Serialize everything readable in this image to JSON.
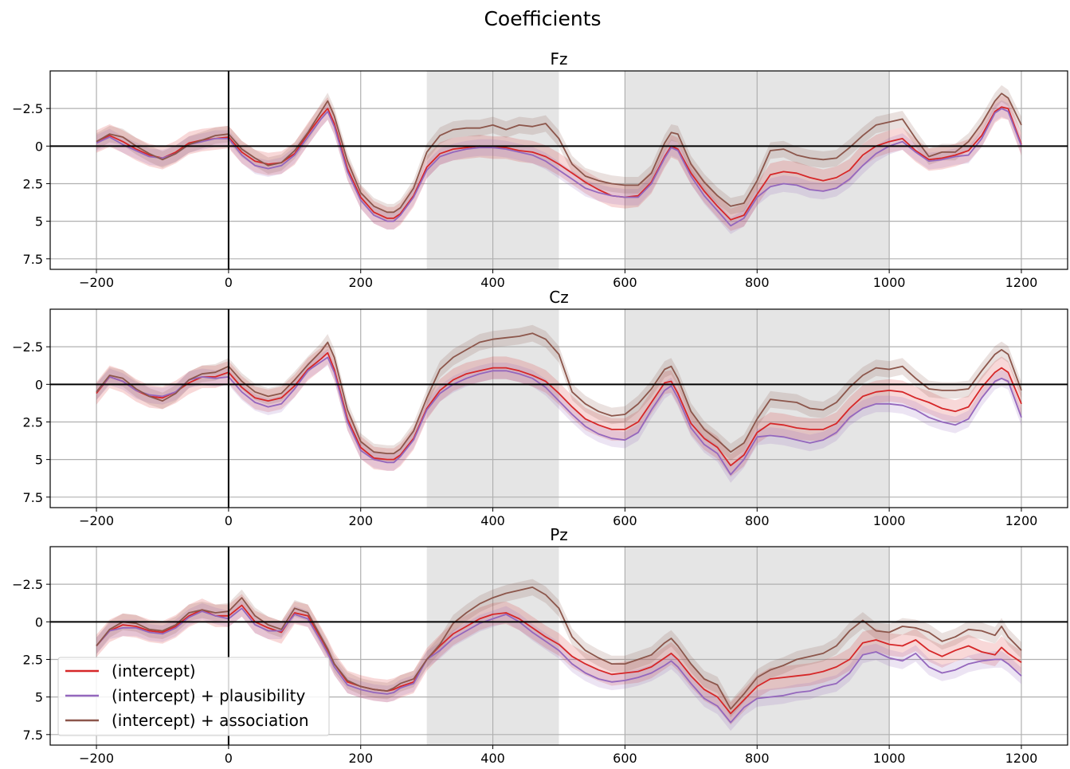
{
  "figure": {
    "title": "Coefficients"
  },
  "colors": {
    "intercept": "#d62728",
    "plausibility": "#9467bd",
    "association": "#8c564b",
    "shade": "#e5e5e5",
    "grid": "#b0b0b0"
  },
  "legend": {
    "location": "lower-left of bottom panel",
    "entries": [
      "(intercept)",
      "(intercept) + plausibility",
      "(intercept) + association"
    ]
  },
  "chart_data": [
    {
      "type": "line",
      "title": "Fz",
      "xlim": [
        -270,
        1270
      ],
      "ylim": [
        8.2,
        -5.0
      ],
      "y_inverted": true,
      "xticks": [
        -200,
        0,
        200,
        400,
        600,
        800,
        1000,
        1200
      ],
      "yticks": [
        -2.5,
        0.0,
        2.5,
        5.0,
        7.5
      ],
      "grid": true,
      "reference_lines": {
        "x": 0,
        "y": 0
      },
      "shaded_x_ranges": [
        [
          300,
          500
        ],
        [
          600,
          1000
        ]
      ],
      "x": [
        -200,
        -180,
        -160,
        -140,
        -120,
        -100,
        -80,
        -60,
        -40,
        -20,
        0,
        20,
        40,
        60,
        80,
        100,
        120,
        140,
        150,
        160,
        180,
        200,
        220,
        240,
        250,
        260,
        280,
        300,
        320,
        340,
        360,
        380,
        400,
        420,
        440,
        460,
        480,
        500,
        520,
        540,
        560,
        580,
        600,
        620,
        640,
        660,
        670,
        680,
        700,
        720,
        740,
        760,
        780,
        800,
        820,
        840,
        860,
        880,
        900,
        920,
        940,
        960,
        980,
        1000,
        1020,
        1040,
        1060,
        1080,
        1100,
        1120,
        1140,
        1160,
        1170,
        1180,
        1200
      ],
      "series": [
        {
          "name": "(intercept)",
          "values": [
            -0.3,
            -0.7,
            -0.3,
            0.2,
            0.6,
            0.8,
            0.4,
            -0.2,
            -0.4,
            -0.5,
            -0.6,
            0.4,
            1.0,
            1.2,
            1.1,
            0.5,
            -0.8,
            -2.0,
            -2.5,
            -1.5,
            1.5,
            3.4,
            4.4,
            4.8,
            4.8,
            4.5,
            3.3,
            1.4,
            0.5,
            0.2,
            0.1,
            0.0,
            0.1,
            0.1,
            0.3,
            0.4,
            0.7,
            1.2,
            1.8,
            2.4,
            2.9,
            3.3,
            3.4,
            3.3,
            2.4,
            0.7,
            0.0,
            0.2,
            1.8,
            3.0,
            4.0,
            4.9,
            4.6,
            3.2,
            1.9,
            1.7,
            1.8,
            2.1,
            2.3,
            2.1,
            1.6,
            0.6,
            0.0,
            -0.3,
            -0.5,
            0.3,
            0.9,
            0.8,
            0.6,
            0.3,
            -0.7,
            -2.3,
            -2.6,
            -2.5,
            -0.1
          ]
        },
        {
          "name": "(intercept) + plausibility",
          "values": [
            -0.2,
            -0.6,
            -0.1,
            0.3,
            0.7,
            0.8,
            0.5,
            -0.1,
            -0.3,
            -0.5,
            -0.5,
            0.6,
            1.3,
            1.5,
            1.3,
            0.6,
            -0.6,
            -1.8,
            -2.3,
            -1.3,
            1.7,
            3.6,
            4.6,
            5.0,
            5.0,
            4.6,
            3.4,
            1.6,
            0.7,
            0.4,
            0.2,
            0.1,
            0.1,
            0.2,
            0.4,
            0.6,
            1.0,
            1.6,
            2.2,
            2.8,
            3.1,
            3.3,
            3.4,
            3.4,
            2.5,
            0.8,
            0.1,
            0.3,
            2.0,
            3.3,
            4.3,
            5.3,
            4.8,
            3.4,
            2.7,
            2.5,
            2.6,
            2.9,
            3.0,
            2.8,
            2.2,
            1.3,
            0.5,
            0.0,
            -0.3,
            0.4,
            1.0,
            0.9,
            0.7,
            0.6,
            -0.5,
            -2.2,
            -2.5,
            -2.3,
            0.0
          ]
        },
        {
          "name": "(intercept) + association",
          "values": [
            -0.3,
            -0.8,
            -0.6,
            0.0,
            0.5,
            0.9,
            0.5,
            -0.1,
            -0.4,
            -0.7,
            -0.8,
            0.2,
            0.8,
            1.3,
            1.1,
            0.3,
            -0.9,
            -2.3,
            -3.0,
            -2.0,
            1.0,
            3.1,
            4.0,
            4.4,
            4.4,
            4.1,
            2.8,
            0.4,
            -0.7,
            -1.1,
            -1.2,
            -1.2,
            -1.4,
            -1.1,
            -1.4,
            -1.3,
            -1.5,
            -0.5,
            1.2,
            2.0,
            2.3,
            2.5,
            2.6,
            2.6,
            1.8,
            -0.2,
            -0.9,
            -0.8,
            1.2,
            2.4,
            3.3,
            4.0,
            3.8,
            2.3,
            0.3,
            0.2,
            0.6,
            0.8,
            0.9,
            0.8,
            0.1,
            -0.7,
            -1.4,
            -1.6,
            -1.8,
            -0.5,
            0.7,
            0.4,
            0.4,
            -0.3,
            -1.5,
            -3.0,
            -3.5,
            -3.2,
            -1.4
          ]
        }
      ]
    },
    {
      "type": "line",
      "title": "Cz",
      "xlim": [
        -270,
        1270
      ],
      "ylim": [
        8.2,
        -5.0
      ],
      "y_inverted": true,
      "xticks": [
        -200,
        0,
        200,
        400,
        600,
        800,
        1000,
        1200
      ],
      "yticks": [
        -2.5,
        0.0,
        2.5,
        5.0,
        7.5
      ],
      "grid": true,
      "reference_lines": {
        "x": 0,
        "y": 0
      },
      "shaded_x_ranges": [
        [
          300,
          500
        ],
        [
          600,
          1000
        ]
      ],
      "x": [
        -200,
        -180,
        -160,
        -140,
        -120,
        -100,
        -80,
        -60,
        -40,
        -20,
        0,
        20,
        40,
        60,
        80,
        100,
        120,
        140,
        150,
        160,
        180,
        200,
        220,
        240,
        250,
        260,
        280,
        300,
        320,
        340,
        360,
        380,
        400,
        420,
        440,
        460,
        480,
        500,
        520,
        540,
        560,
        580,
        600,
        620,
        640,
        660,
        670,
        680,
        700,
        720,
        740,
        760,
        780,
        800,
        820,
        840,
        860,
        880,
        900,
        920,
        940,
        960,
        980,
        1000,
        1020,
        1040,
        1060,
        1080,
        1100,
        1120,
        1140,
        1160,
        1170,
        1180,
        1200
      ],
      "series": [
        {
          "name": "(intercept)",
          "values": [
            0.6,
            -0.5,
            -0.2,
            0.4,
            0.8,
            0.9,
            0.5,
            -0.1,
            -0.5,
            -0.5,
            -0.8,
            0.2,
            0.9,
            1.1,
            0.9,
            0.1,
            -1.0,
            -1.7,
            -2.1,
            -1.0,
            2.3,
            4.2,
            4.9,
            5.0,
            5.0,
            4.7,
            3.6,
            1.6,
            0.4,
            -0.3,
            -0.7,
            -0.9,
            -1.1,
            -1.1,
            -0.9,
            -0.6,
            -0.2,
            0.6,
            1.5,
            2.3,
            2.7,
            3.0,
            3.0,
            2.5,
            1.2,
            -0.1,
            -0.2,
            0.6,
            2.6,
            3.6,
            4.2,
            5.4,
            4.7,
            3.2,
            2.6,
            2.7,
            2.9,
            3.0,
            3.0,
            2.6,
            1.6,
            0.8,
            0.5,
            0.4,
            0.5,
            0.9,
            1.2,
            1.6,
            1.8,
            1.5,
            0.2,
            -0.8,
            -1.1,
            -0.8,
            1.3
          ]
        },
        {
          "name": "(intercept) + plausibility",
          "values": [
            0.5,
            -0.5,
            -0.2,
            0.4,
            0.7,
            0.8,
            0.5,
            -0.3,
            -0.5,
            -0.4,
            -0.5,
            0.5,
            1.2,
            1.5,
            1.3,
            0.3,
            -0.9,
            -1.5,
            -1.8,
            -0.8,
            2.5,
            4.4,
            5.0,
            5.2,
            5.2,
            4.8,
            3.7,
            1.7,
            0.6,
            0.0,
            -0.4,
            -0.7,
            -0.9,
            -0.9,
            -0.7,
            -0.4,
            0.2,
            1.1,
            2.0,
            2.8,
            3.3,
            3.6,
            3.7,
            3.2,
            1.7,
            0.4,
            0.1,
            0.9,
            2.9,
            4.0,
            4.6,
            6.0,
            5.0,
            3.5,
            3.4,
            3.5,
            3.7,
            3.9,
            3.7,
            3.2,
            2.2,
            1.6,
            1.3,
            1.3,
            1.4,
            1.7,
            2.2,
            2.5,
            2.7,
            2.3,
            0.9,
            -0.2,
            -0.4,
            -0.2,
            2.2
          ]
        },
        {
          "name": "(intercept) + association",
          "values": [
            0.5,
            -0.6,
            -0.4,
            0.3,
            0.8,
            1.1,
            0.6,
            -0.3,
            -0.7,
            -0.8,
            -1.2,
            -0.2,
            0.5,
            0.8,
            0.6,
            -0.3,
            -1.3,
            -2.2,
            -2.8,
            -1.8,
            1.7,
            3.8,
            4.5,
            4.6,
            4.6,
            4.3,
            3.1,
            0.9,
            -1.0,
            -1.8,
            -2.3,
            -2.8,
            -3.0,
            -3.1,
            -3.2,
            -3.4,
            -3.0,
            -2.0,
            0.5,
            1.3,
            1.8,
            2.1,
            2.0,
            1.3,
            0.3,
            -1.0,
            -1.2,
            -0.4,
            1.8,
            3.0,
            3.7,
            4.5,
            3.9,
            2.3,
            1.0,
            1.1,
            1.2,
            1.6,
            1.7,
            1.2,
            0.2,
            -0.6,
            -1.1,
            -1.0,
            -1.2,
            -0.4,
            0.3,
            0.4,
            0.4,
            0.3,
            -0.9,
            -2.0,
            -2.3,
            -2.0,
            0.4
          ]
        }
      ]
    },
    {
      "type": "line",
      "title": "Pz",
      "xlim": [
        -270,
        1270
      ],
      "ylim": [
        8.2,
        -5.0
      ],
      "y_inverted": true,
      "xticks": [
        -200,
        0,
        200,
        400,
        600,
        800,
        1000,
        1200
      ],
      "yticks": [
        -2.5,
        0.0,
        2.5,
        5.0,
        7.5
      ],
      "grid": true,
      "reference_lines": {
        "x": 0,
        "y": 0
      },
      "shaded_x_ranges": [
        [
          300,
          500
        ],
        [
          600,
          1000
        ]
      ],
      "x": [
        -200,
        -180,
        -160,
        -140,
        -120,
        -100,
        -80,
        -60,
        -40,
        -20,
        0,
        20,
        40,
        60,
        80,
        100,
        120,
        140,
        150,
        160,
        180,
        200,
        220,
        240,
        250,
        260,
        280,
        300,
        320,
        340,
        360,
        380,
        400,
        420,
        440,
        460,
        480,
        500,
        520,
        540,
        560,
        580,
        600,
        620,
        640,
        660,
        670,
        680,
        700,
        720,
        740,
        760,
        780,
        800,
        820,
        840,
        860,
        880,
        900,
        920,
        940,
        960,
        980,
        1000,
        1020,
        1040,
        1060,
        1080,
        1100,
        1120,
        1140,
        1160,
        1170,
        1180,
        1200
      ],
      "series": [
        {
          "name": "(intercept)",
          "values": [
            1.6,
            0.6,
            0.2,
            0.3,
            0.6,
            0.7,
            0.3,
            -0.4,
            -0.8,
            -0.4,
            -0.4,
            -1.1,
            0.0,
            0.4,
            0.7,
            -0.6,
            -0.4,
            1.1,
            1.9,
            2.8,
            4.0,
            4.3,
            4.5,
            4.6,
            4.5,
            4.3,
            4.0,
            2.5,
            1.6,
            0.8,
            0.3,
            -0.2,
            -0.5,
            -0.6,
            -0.2,
            0.4,
            1.0,
            1.5,
            2.3,
            2.8,
            3.2,
            3.5,
            3.4,
            3.3,
            3.0,
            2.4,
            2.1,
            2.5,
            3.6,
            4.5,
            5.0,
            6.1,
            5.2,
            4.3,
            3.8,
            3.7,
            3.6,
            3.5,
            3.3,
            3.0,
            2.5,
            1.4,
            1.2,
            1.5,
            1.6,
            1.2,
            1.9,
            2.3,
            1.9,
            1.6,
            2.0,
            2.2,
            1.7,
            2.1,
            2.7
          ]
        },
        {
          "name": "(intercept) + plausibility",
          "values": [
            1.6,
            0.6,
            0.4,
            0.4,
            0.7,
            0.8,
            0.4,
            -0.3,
            -0.7,
            -0.4,
            -0.2,
            -0.9,
            0.2,
            0.6,
            0.6,
            -0.5,
            -0.2,
            1.3,
            2.1,
            3.0,
            4.2,
            4.5,
            4.7,
            4.8,
            4.7,
            4.4,
            4.1,
            2.5,
            1.9,
            1.1,
            0.6,
            0.1,
            -0.2,
            -0.5,
            0.0,
            0.7,
            1.3,
            1.9,
            2.8,
            3.4,
            3.8,
            4.0,
            3.9,
            3.7,
            3.4,
            2.9,
            2.6,
            3.0,
            4.1,
            5.1,
            5.6,
            6.7,
            5.7,
            5.1,
            5.0,
            4.9,
            4.7,
            4.6,
            4.3,
            4.1,
            3.4,
            2.2,
            2.0,
            2.4,
            2.6,
            2.1,
            3.0,
            3.4,
            3.2,
            2.8,
            2.6,
            2.5,
            2.5,
            2.8,
            3.6
          ]
        },
        {
          "name": "(intercept) + association",
          "values": [
            1.6,
            0.5,
            0.0,
            0.1,
            0.5,
            0.6,
            0.2,
            -0.6,
            -0.8,
            -0.6,
            -0.7,
            -1.6,
            -0.4,
            0.2,
            0.5,
            -0.9,
            -0.6,
            1.0,
            1.8,
            2.8,
            3.9,
            4.3,
            4.5,
            4.6,
            4.4,
            4.1,
            3.8,
            2.5,
            1.5,
            0.1,
            -0.6,
            -1.2,
            -1.6,
            -1.9,
            -2.1,
            -2.3,
            -1.8,
            -0.9,
            1.0,
            1.9,
            2.4,
            2.8,
            2.8,
            2.5,
            2.2,
            1.4,
            1.1,
            1.6,
            2.8,
            3.8,
            4.2,
            5.8,
            4.8,
            3.7,
            3.2,
            2.9,
            2.5,
            2.3,
            2.1,
            1.6,
            0.6,
            -0.1,
            0.6,
            0.7,
            0.3,
            0.4,
            0.7,
            1.3,
            1.0,
            0.5,
            0.6,
            0.9,
            0.3,
            1.0,
            1.9
          ]
        }
      ]
    }
  ]
}
